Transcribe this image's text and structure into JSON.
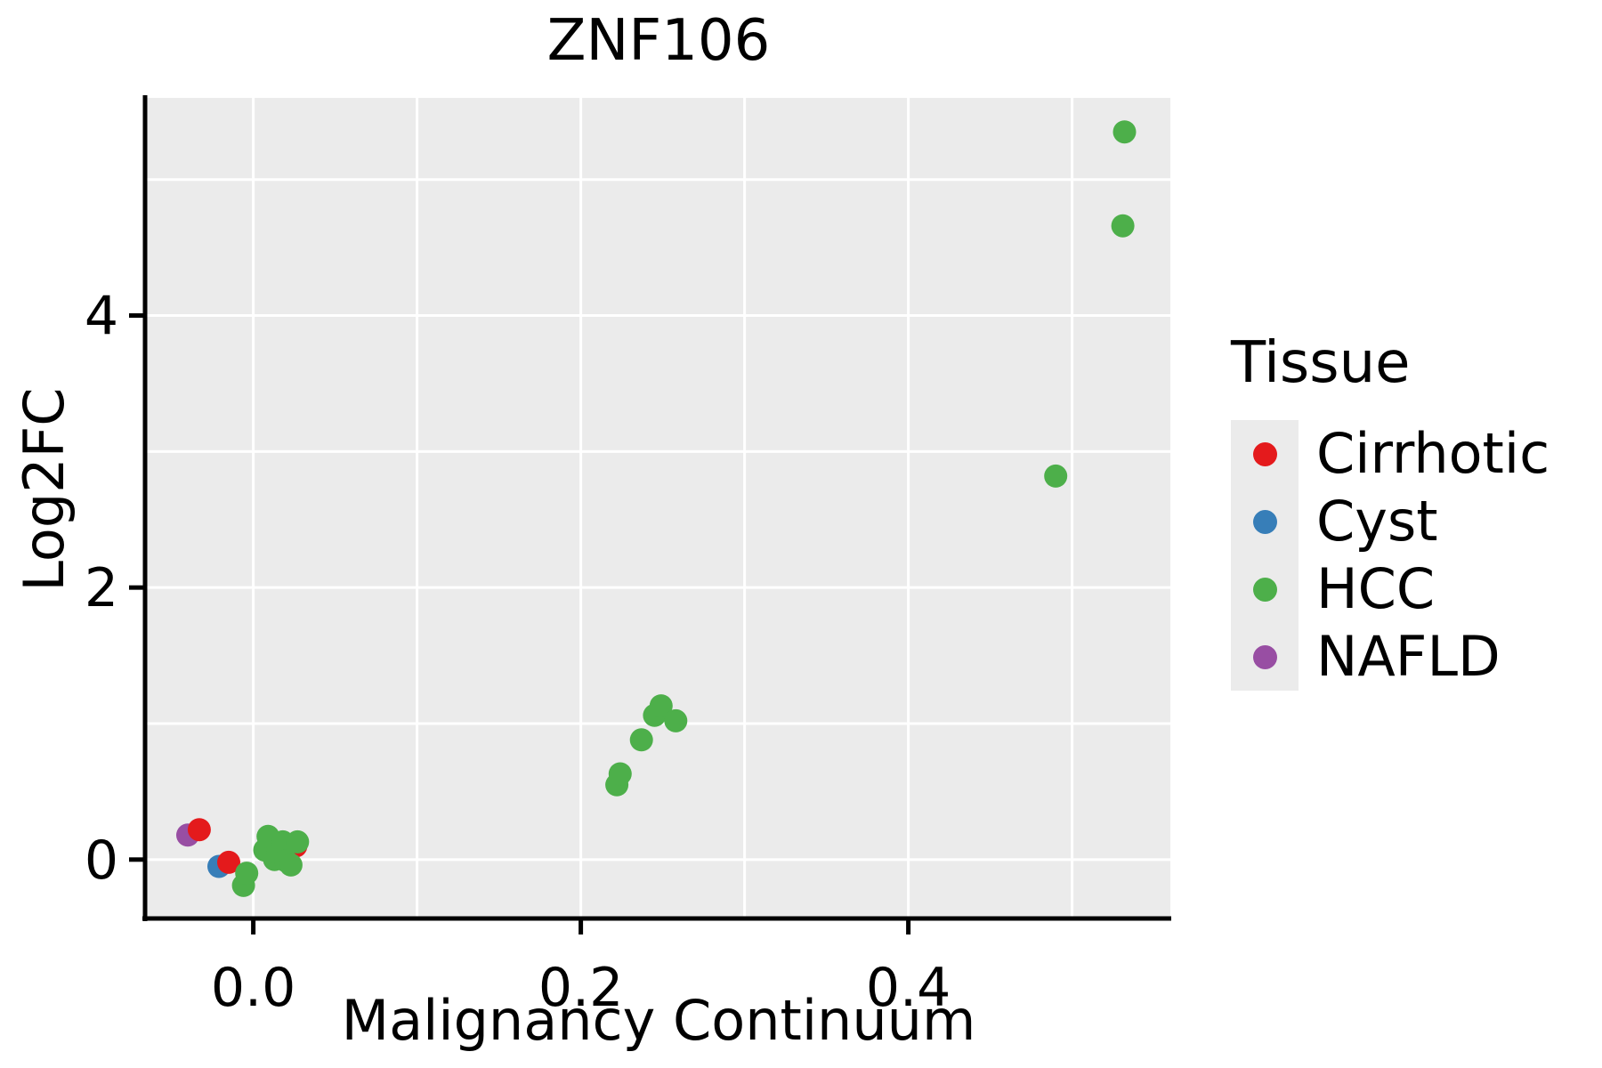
{
  "chart_data": {
    "type": "scatter",
    "title": "ZNF106",
    "xlabel": "Malignancy Continuum",
    "ylabel": "Log2FC",
    "legend_title": "Tissue",
    "legend_position": "right",
    "xlim": [
      -0.065,
      0.56
    ],
    "ylim": [
      -0.42,
      5.6
    ],
    "x_ticks": [
      0.0,
      0.2,
      0.4
    ],
    "x_tick_labels": [
      "0.0",
      "0.2",
      "0.4"
    ],
    "y_ticks": [
      0,
      2,
      4
    ],
    "y_tick_labels": [
      "0",
      "2",
      "4"
    ],
    "x_gridlines": [
      0.0,
      0.1,
      0.2,
      0.3,
      0.4,
      0.5
    ],
    "y_gridlines": [
      0,
      1,
      2,
      3,
      4,
      5
    ],
    "grid": true,
    "background": "#ebebeb",
    "grid_color": "#ffffff",
    "axis_color": "#000000",
    "draw_order": [
      3,
      1,
      0,
      2
    ],
    "series": [
      {
        "name": "Cirrhotic",
        "color": "#e41a1c",
        "points": [
          [
            -0.033,
            0.22
          ],
          [
            -0.015,
            -0.02
          ],
          [
            0.026,
            0.1
          ]
        ]
      },
      {
        "name": "Cyst",
        "color": "#377eb8",
        "points": [
          [
            -0.021,
            -0.05
          ]
        ]
      },
      {
        "name": "HCC",
        "color": "#4daf4a",
        "points": [
          [
            -0.006,
            -0.19
          ],
          [
            -0.004,
            -0.1
          ],
          [
            0.007,
            0.07
          ],
          [
            0.009,
            0.17
          ],
          [
            0.013,
            0.0
          ],
          [
            0.015,
            0.05
          ],
          [
            0.018,
            0.13
          ],
          [
            0.02,
            -0.01
          ],
          [
            0.023,
            -0.04
          ],
          [
            0.027,
            0.13
          ],
          [
            0.222,
            0.55
          ],
          [
            0.224,
            0.63
          ],
          [
            0.237,
            0.88
          ],
          [
            0.245,
            1.06
          ],
          [
            0.249,
            1.13
          ],
          [
            0.258,
            1.02
          ],
          [
            0.49,
            2.82
          ],
          [
            0.531,
            4.66
          ],
          [
            0.532,
            5.35
          ]
        ]
      },
      {
        "name": "NAFLD",
        "color": "#984ea3",
        "points": [
          [
            -0.04,
            0.18
          ]
        ]
      }
    ]
  }
}
